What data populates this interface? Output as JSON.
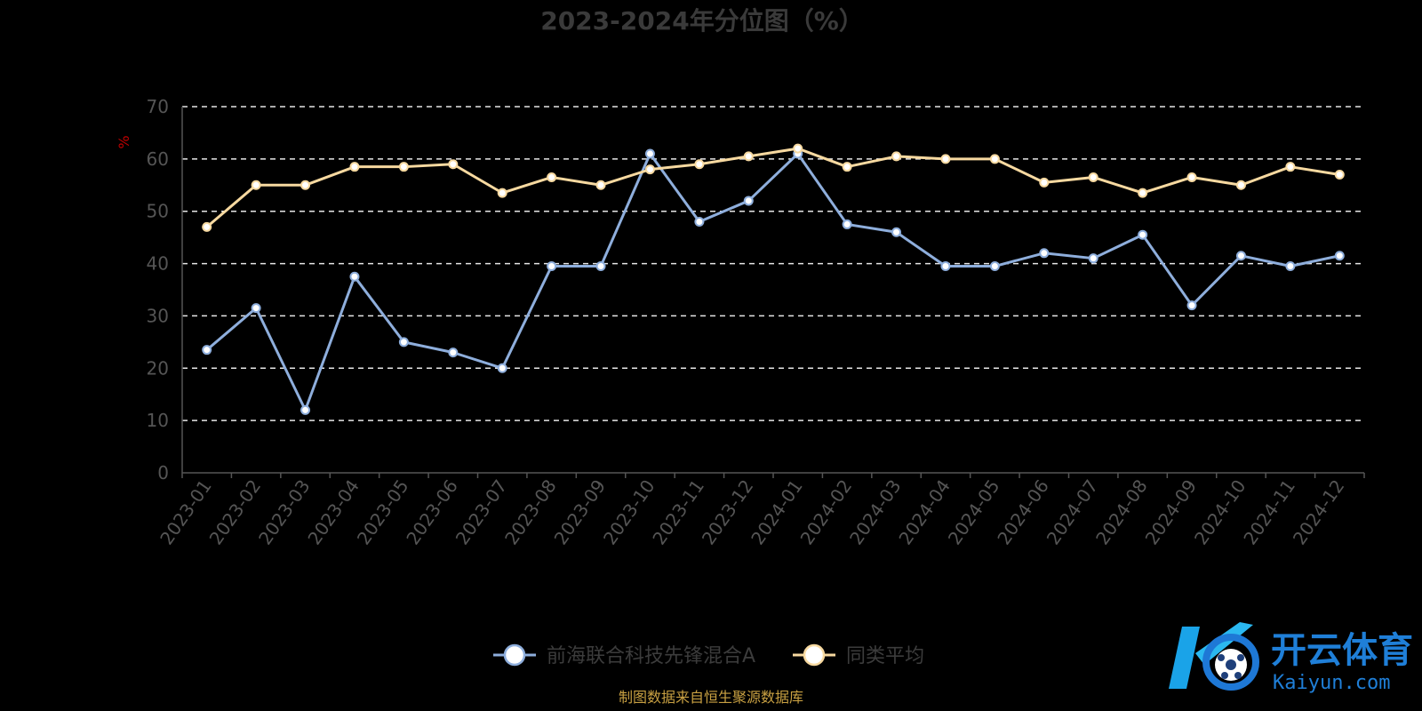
{
  "chart_data": {
    "type": "line",
    "title": "2023-2024年分位图（%）",
    "ylabel": "%",
    "xlabel": "",
    "ylim": [
      0,
      70
    ],
    "yticks": [
      0,
      10,
      20,
      30,
      40,
      50,
      60,
      70
    ],
    "grid": true,
    "legend_position": "bottom-center",
    "categories": [
      "2023-01",
      "2023-02",
      "2023-03",
      "2023-04",
      "2023-05",
      "2023-06",
      "2023-07",
      "2023-08",
      "2023-09",
      "2023-10",
      "2023-11",
      "2023-12",
      "2024-01",
      "2024-02",
      "2024-03",
      "2024-04",
      "2024-05",
      "2024-06",
      "2024-07",
      "2024-08",
      "2024-09",
      "2024-10",
      "2024-11",
      "2024-12"
    ],
    "series": [
      {
        "name": "前海联合科技先锋混合A",
        "color": "#8eaedc",
        "values": [
          23.5,
          31.5,
          12,
          37.5,
          25,
          23,
          20,
          39.5,
          39.5,
          61,
          48,
          52,
          61,
          47.5,
          46,
          39.5,
          39.5,
          42,
          41,
          45.5,
          32,
          41.5,
          39.5,
          41.5
        ]
      },
      {
        "name": "同类平均",
        "color": "#f7d9a0",
        "values": [
          47,
          55,
          55,
          58.5,
          58.5,
          59,
          53.5,
          56.5,
          55,
          58,
          59,
          60.5,
          62,
          58.5,
          60.5,
          60,
          60,
          55.5,
          56.5,
          53.5,
          56.5,
          55,
          58.5,
          57
        ]
      }
    ]
  },
  "footer": "制图数据来自恒生聚源数据库",
  "watermark": {
    "brand": "开云体育",
    "domain": "Kaiyun.com"
  }
}
